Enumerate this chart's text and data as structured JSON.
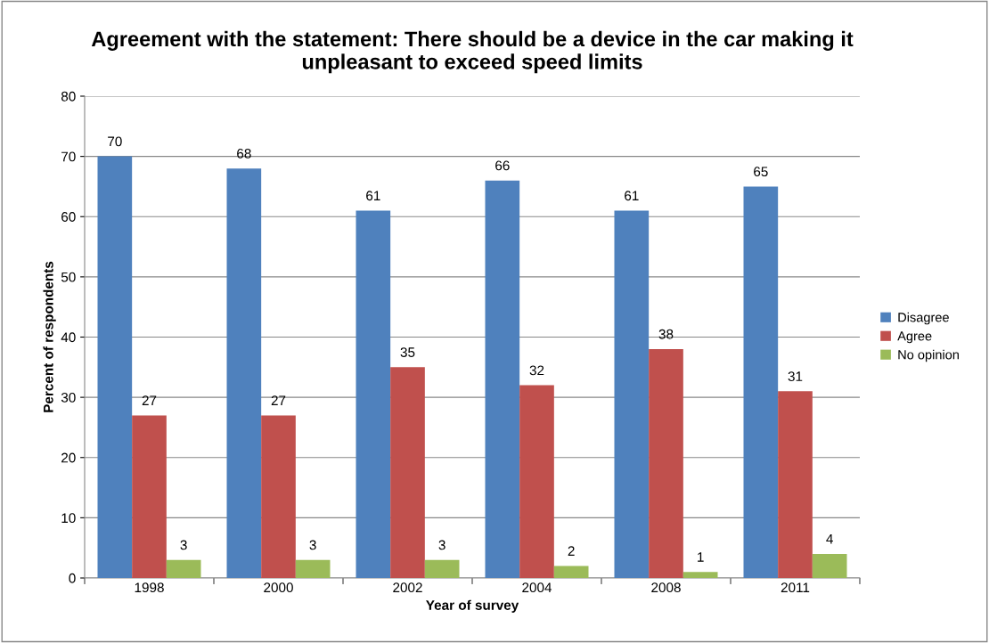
{
  "chart_data": {
    "type": "bar",
    "title": "Agreement with the statement: There should be a device in the car making it\nunpleasant to exceed speed limits",
    "xlabel": "Year of survey",
    "ylabel": "Percent of respondents",
    "categories": [
      "1998",
      "2000",
      "2002",
      "2004",
      "2008",
      "2011"
    ],
    "series": [
      {
        "name": "Disagree",
        "color": "#4f81bd",
        "values": [
          70,
          68,
          61,
          66,
          61,
          65
        ]
      },
      {
        "name": "Agree",
        "color": "#c0504d",
        "values": [
          27,
          27,
          35,
          32,
          38,
          31
        ]
      },
      {
        "name": "No opinion",
        "color": "#9bbb59",
        "values": [
          3,
          3,
          3,
          2,
          1,
          4
        ]
      }
    ],
    "ylim": [
      0,
      80
    ],
    "yticks": [
      0,
      10,
      20,
      30,
      40,
      50,
      60,
      70,
      80
    ],
    "grid": "y",
    "legend": "right",
    "data_labels": true
  }
}
